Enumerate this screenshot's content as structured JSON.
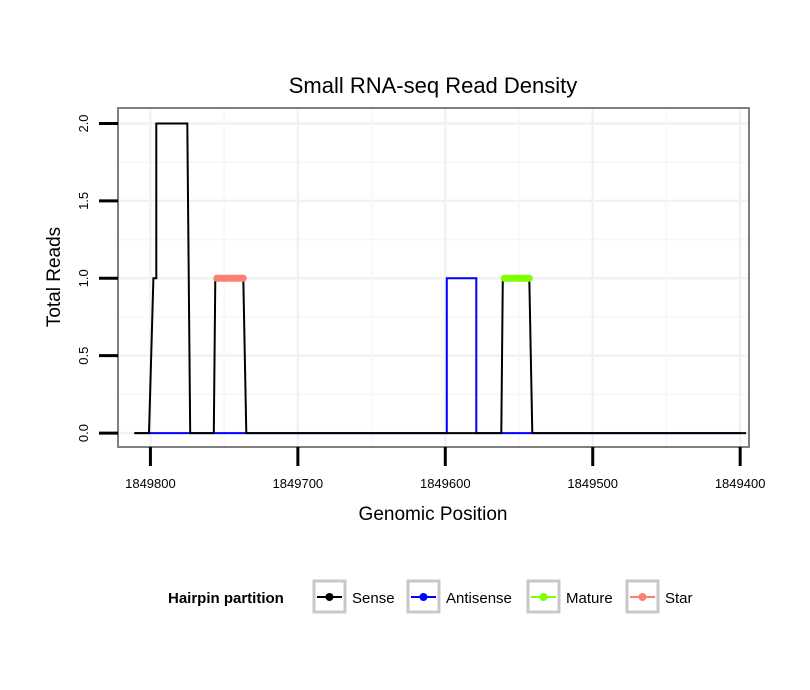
{
  "chart_data": {
    "type": "line",
    "title": "Small RNA-seq Read Density",
    "xlabel": "Genomic Position",
    "ylabel": "Total Reads",
    "xlim": [
      1849822,
      1849394
    ],
    "ylim": [
      -0.09,
      2.1
    ],
    "x_reversed": true,
    "grid": true,
    "xticks": [
      1849800,
      1849700,
      1849600,
      1849500,
      1849400
    ],
    "xtick_labels": [
      "1849800",
      "1849700",
      "1849600",
      "1849500",
      "1849400"
    ],
    "yticks": [
      0.0,
      0.5,
      1.0,
      1.5,
      2.0
    ],
    "ytick_labels": [
      "0.0",
      "0.5",
      "1.0",
      "1.5",
      "2.0"
    ],
    "legend": {
      "title": "Hairpin partition",
      "position": "bottom",
      "entries": [
        {
          "label": "Sense",
          "color": "#000000"
        },
        {
          "label": "Antisense",
          "color": "#0000ff"
        },
        {
          "label": "Mature",
          "color": "#7fff00"
        },
        {
          "label": "Star",
          "color": "#fa8072"
        }
      ]
    },
    "series": [
      {
        "name": "Antisense",
        "color": "#0000ff",
        "stroke_width": 2,
        "x": [
          1849810,
          1849599,
          1849599,
          1849579,
          1849579,
          1849400
        ],
        "y": [
          0,
          0,
          1,
          1,
          0,
          0
        ]
      },
      {
        "name": "Sense",
        "color": "#000000",
        "stroke_width": 2,
        "x": [
          1849811,
          1849801,
          1849798,
          1849798,
          1849796,
          1849796,
          1849775,
          1849773,
          1849757,
          1849756,
          1849737,
          1849735,
          1849562,
          1849561,
          1849543,
          1849541,
          1849396
        ],
        "y": [
          0,
          0,
          1,
          1,
          1,
          2,
          2,
          0,
          0,
          1,
          1,
          0,
          0,
          1,
          1,
          0,
          0
        ]
      },
      {
        "name": "Star",
        "color": "#fa8072",
        "stroke_width": 7,
        "x": [
          1849755,
          1849737
        ],
        "y": [
          1,
          1
        ]
      },
      {
        "name": "Mature",
        "color": "#7fff00",
        "stroke_width": 7,
        "x": [
          1849560,
          1849543
        ],
        "y": [
          1,
          1
        ]
      }
    ]
  }
}
